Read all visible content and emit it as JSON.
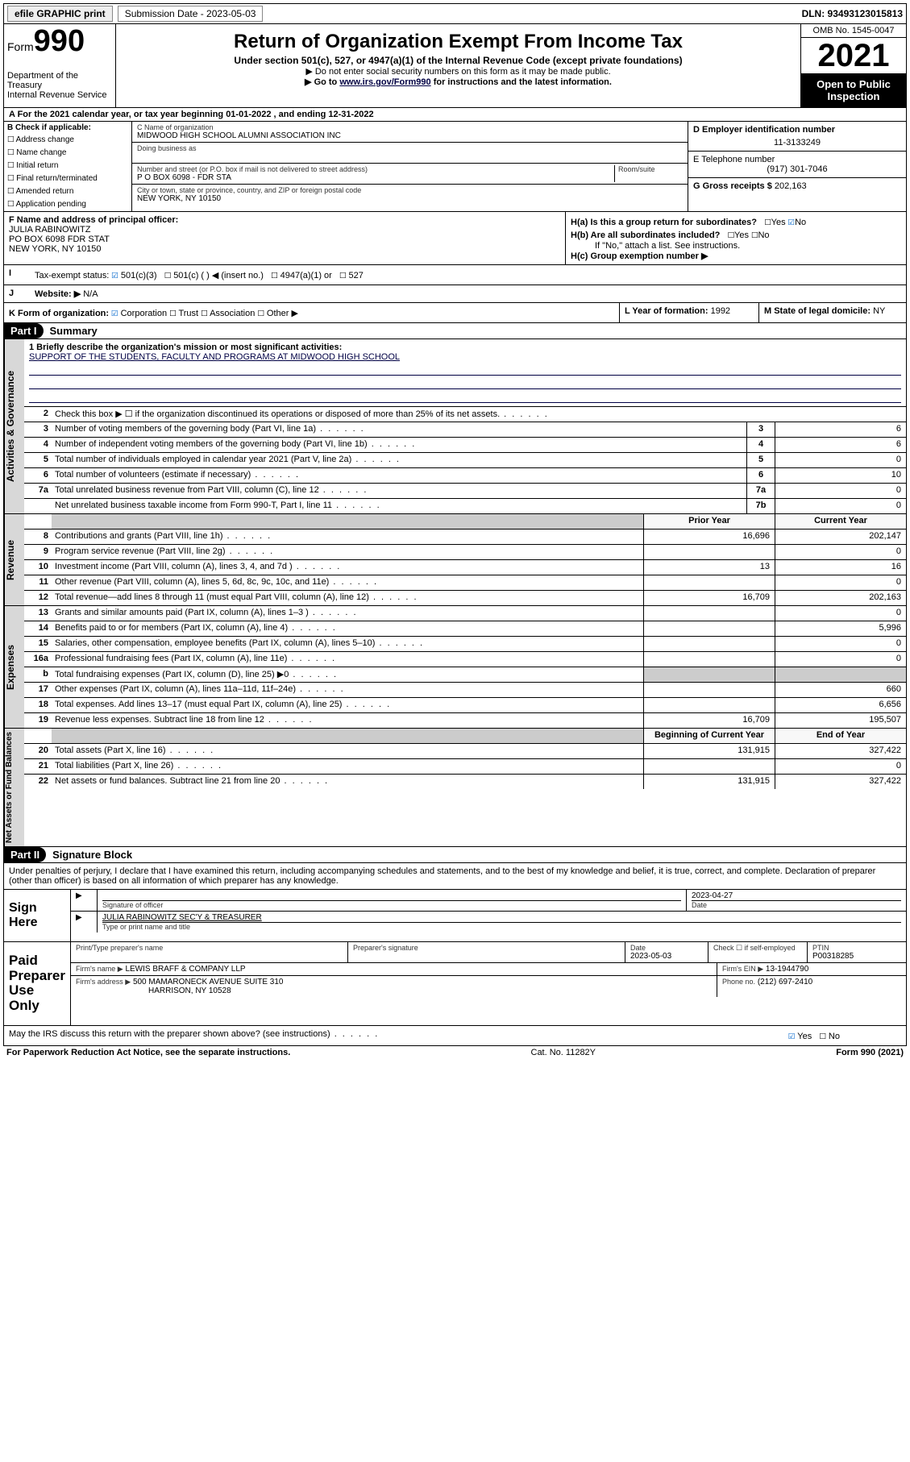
{
  "topbar": {
    "efile": "efile GRAPHIC print",
    "sub_label": "Submission Date - 2023-05-03",
    "dln": "DLN: 93493123015813"
  },
  "header": {
    "form_label": "Form",
    "form_num": "990",
    "dept": "Department of the Treasury",
    "irs": "Internal Revenue Service",
    "title": "Return of Organization Exempt From Income Tax",
    "sub1": "Under section 501(c), 527, or 4947(a)(1) of the Internal Revenue Code (except private foundations)",
    "sub2a": "▶ Do not enter social security numbers on this form as it may be made public.",
    "sub2b_pre": "▶ Go to ",
    "sub2b_link": "www.irs.gov/Form990",
    "sub2b_post": " for instructions and the latest information.",
    "omb": "OMB No. 1545-0047",
    "year": "2021",
    "open": "Open to Public Inspection"
  },
  "sectionA": "A For the 2021 calendar year, or tax year beginning 01-01-2022    , and ending 12-31-2022",
  "B": {
    "title": "B Check if applicable:",
    "items": [
      "Address change",
      "Name change",
      "Initial return",
      "Final return/terminated",
      "Amended return",
      "Application pending"
    ]
  },
  "C": {
    "name_label": "C Name of organization",
    "name": "MIDWOOD HIGH SCHOOL ALUMNI ASSOCIATION INC",
    "dba_label": "Doing business as",
    "addr_label": "Number and street (or P.O. box if mail is not delivered to street address)",
    "suite_label": "Room/suite",
    "addr": "P O BOX 6098 - FDR STA",
    "city_label": "City or town, state or province, country, and ZIP or foreign postal code",
    "city": "NEW YORK, NY  10150"
  },
  "D": {
    "label": "D Employer identification number",
    "val": "11-3133249"
  },
  "E": {
    "label": "E Telephone number",
    "val": "(917) 301-7046"
  },
  "G": {
    "label": "G Gross receipts $",
    "val": "202,163"
  },
  "F": {
    "label": "F  Name and address of principal officer:",
    "name": "JULIA RABINOWITZ",
    "addr1": "PO BOX 6098 FDR STAT",
    "addr2": "NEW YORK, NY  10150"
  },
  "H": {
    "a": "H(a)  Is this a group return for subordinates?",
    "b": "H(b)  Are all subordinates included?",
    "note": "If \"No,\" attach a list. See instructions.",
    "c": "H(c)  Group exemption number ▶",
    "yes": "Yes",
    "no": "No"
  },
  "I": {
    "label": "Tax-exempt status:",
    "opts": [
      "501(c)(3)",
      "501(c) (  ) ◀ (insert no.)",
      "4947(a)(1) or",
      "527"
    ]
  },
  "J": {
    "label": "Website: ▶",
    "val": "N/A"
  },
  "K": {
    "label": "K Form of organization:",
    "opts": [
      "Corporation",
      "Trust",
      "Association",
      "Other ▶"
    ]
  },
  "L": {
    "label": "L Year of formation:",
    "val": "1992"
  },
  "M": {
    "label": "M State of legal domicile:",
    "val": "NY"
  },
  "part1": {
    "hdr": "Part I",
    "title": "Summary"
  },
  "tabs": {
    "gov": "Activities & Governance",
    "rev": "Revenue",
    "exp": "Expenses",
    "net": "Net Assets or Fund Balances"
  },
  "mission": {
    "q": "1  Briefly describe the organization's mission or most significant activities:",
    "text": "SUPPORT OF THE STUDENTS, FACULTY AND PROGRAMS AT MIDWOOD HIGH SCHOOL"
  },
  "lines_gov": [
    {
      "n": "2",
      "d": "Check this box ▶ ☐  if the organization discontinued its operations or disposed of more than 25% of its net assets.",
      "b": "",
      "v": ""
    },
    {
      "n": "3",
      "d": "Number of voting members of the governing body (Part VI, line 1a)",
      "b": "3",
      "v": "6"
    },
    {
      "n": "4",
      "d": "Number of independent voting members of the governing body (Part VI, line 1b)",
      "b": "4",
      "v": "6"
    },
    {
      "n": "5",
      "d": "Total number of individuals employed in calendar year 2021 (Part V, line 2a)",
      "b": "5",
      "v": "0"
    },
    {
      "n": "6",
      "d": "Total number of volunteers (estimate if necessary)",
      "b": "6",
      "v": "10"
    },
    {
      "n": "7a",
      "d": "Total unrelated business revenue from Part VIII, column (C), line 12",
      "b": "7a",
      "v": "0"
    },
    {
      "n": "",
      "d": "Net unrelated business taxable income from Form 990-T, Part I, line 11",
      "b": "7b",
      "v": "0"
    }
  ],
  "col_hdr": {
    "prior": "Prior Year",
    "current": "Current Year"
  },
  "lines_rev": [
    {
      "n": "8",
      "d": "Contributions and grants (Part VIII, line 1h)",
      "p": "16,696",
      "c": "202,147"
    },
    {
      "n": "9",
      "d": "Program service revenue (Part VIII, line 2g)",
      "p": "",
      "c": "0"
    },
    {
      "n": "10",
      "d": "Investment income (Part VIII, column (A), lines 3, 4, and 7d )",
      "p": "13",
      "c": "16"
    },
    {
      "n": "11",
      "d": "Other revenue (Part VIII, column (A), lines 5, 6d, 8c, 9c, 10c, and 11e)",
      "p": "",
      "c": "0"
    },
    {
      "n": "12",
      "d": "Total revenue—add lines 8 through 11 (must equal Part VIII, column (A), line 12)",
      "p": "16,709",
      "c": "202,163"
    }
  ],
  "lines_exp": [
    {
      "n": "13",
      "d": "Grants and similar amounts paid (Part IX, column (A), lines 1–3 )",
      "p": "",
      "c": "0"
    },
    {
      "n": "14",
      "d": "Benefits paid to or for members (Part IX, column (A), line 4)",
      "p": "",
      "c": "5,996"
    },
    {
      "n": "15",
      "d": "Salaries, other compensation, employee benefits (Part IX, column (A), lines 5–10)",
      "p": "",
      "c": "0"
    },
    {
      "n": "16a",
      "d": "Professional fundraising fees (Part IX, column (A), line 11e)",
      "p": "",
      "c": "0"
    },
    {
      "n": "b",
      "d": "Total fundraising expenses (Part IX, column (D), line 25) ▶0",
      "p": "shaded",
      "c": "shaded"
    },
    {
      "n": "17",
      "d": "Other expenses (Part IX, column (A), lines 11a–11d, 11f–24e)",
      "p": "",
      "c": "660"
    },
    {
      "n": "18",
      "d": "Total expenses. Add lines 13–17 (must equal Part IX, column (A), line 25)",
      "p": "",
      "c": "6,656"
    },
    {
      "n": "19",
      "d": "Revenue less expenses. Subtract line 18 from line 12",
      "p": "16,709",
      "c": "195,507"
    }
  ],
  "col_hdr2": {
    "begin": "Beginning of Current Year",
    "end": "End of Year"
  },
  "lines_net": [
    {
      "n": "20",
      "d": "Total assets (Part X, line 16)",
      "p": "131,915",
      "c": "327,422"
    },
    {
      "n": "21",
      "d": "Total liabilities (Part X, line 26)",
      "p": "",
      "c": "0"
    },
    {
      "n": "22",
      "d": "Net assets or fund balances. Subtract line 21 from line 20",
      "p": "131,915",
      "c": "327,422"
    }
  ],
  "part2": {
    "hdr": "Part II",
    "title": "Signature Block"
  },
  "sig_intro": "Under penalties of perjury, I declare that I have examined this return, including accompanying schedules and statements, and to the best of my knowledge and belief, it is true, correct, and complete. Declaration of preparer (other than officer) is based on all information of which preparer has any knowledge.",
  "sign": {
    "here": "Sign Here",
    "sig_officer": "Signature of officer",
    "date": "2023-04-27",
    "date_label": "Date",
    "name": "JULIA RABINOWITZ  SEC'Y & TREASURER",
    "name_label": "Type or print name and title"
  },
  "paid": {
    "left": "Paid Preparer Use Only",
    "h1": "Print/Type preparer's name",
    "h2": "Preparer's signature",
    "h3_label": "Date",
    "h3": "2023-05-03",
    "h4": "Check ☐ if self-employed",
    "h5_label": "PTIN",
    "h5": "P00318285",
    "firm_name_label": "Firm's name      ▶",
    "firm_name": "LEWIS BRAFF & COMPANY LLP",
    "firm_ein_label": "Firm's EIN ▶",
    "firm_ein": "13-1944790",
    "firm_addr_label": "Firm's address ▶",
    "firm_addr1": "500 MAMARONECK AVENUE SUITE 310",
    "firm_addr2": "HARRISON, NY  10528",
    "phone_label": "Phone no.",
    "phone": "(212) 697-2410"
  },
  "irs_discuss": "May the IRS discuss this return with the preparer shown above? (see instructions)",
  "footer": {
    "left": "For Paperwork Reduction Act Notice, see the separate instructions.",
    "mid": "Cat. No. 11282Y",
    "right": "Form 990 (2021)"
  }
}
